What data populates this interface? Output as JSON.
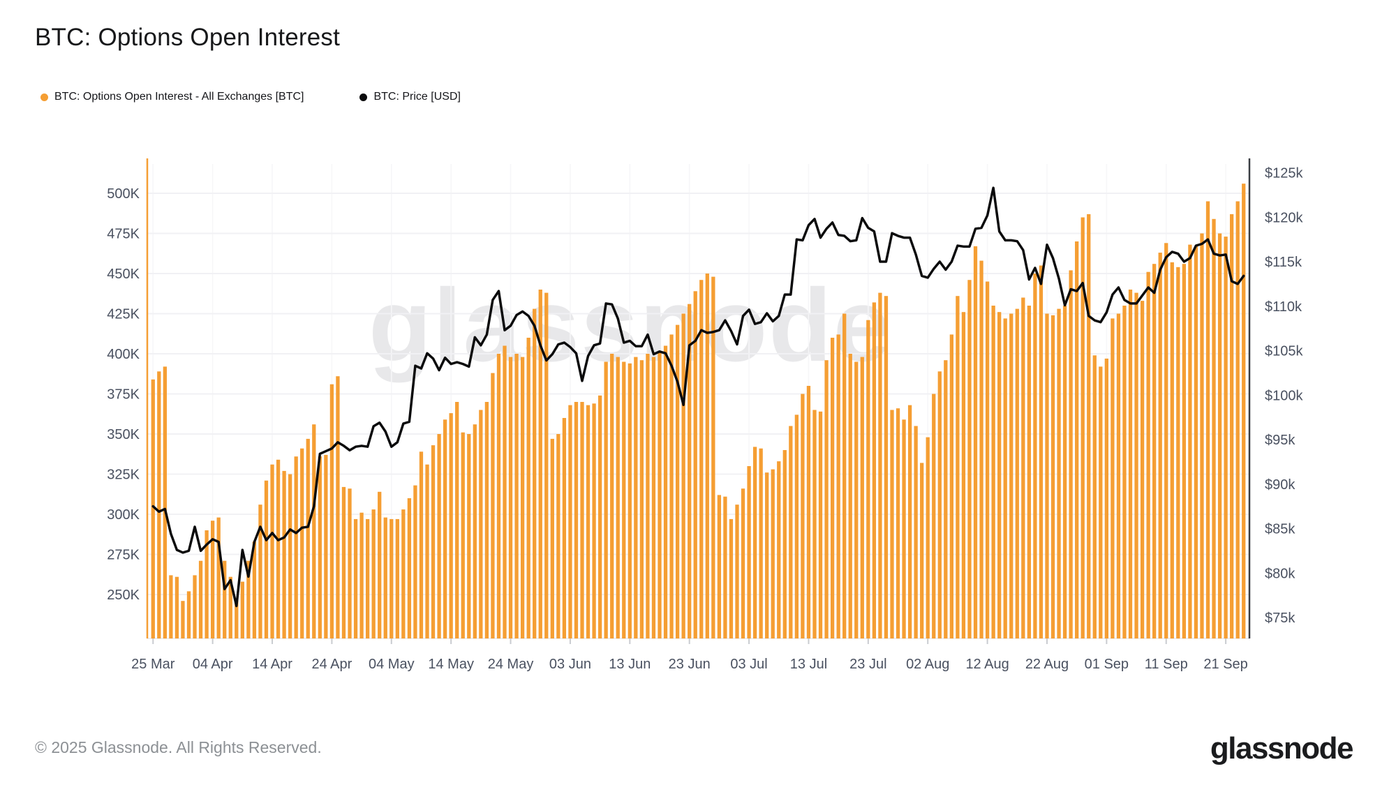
{
  "header": {
    "title": "BTC: Options Open Interest"
  },
  "legend": {
    "oi_label": "BTC: Options Open Interest - All Exchanges [BTC]",
    "price_label": "BTC: Price [USD]"
  },
  "watermark": {
    "text": "glassnode"
  },
  "footer": {
    "copyright": "© 2025 Glassnode. All Rights Reserved.",
    "logo_text": "glassnode"
  },
  "colors": {
    "oi_bar": "#F59E33",
    "price_line": "#0B0B0C",
    "grid_line": "#F1F1F4",
    "grid_line_vertical": "#F6F6F8",
    "axis_text": "#4A5160",
    "left_axis_line": "#F59E33",
    "right_axis_line": "#3A3D42",
    "tick_mark": "#C9CCD1",
    "plot_floor": "#E9E9EE"
  },
  "chart_data": {
    "type": "mixed",
    "title": "BTC: Options Open Interest",
    "x_tick_labels": [
      "25 Mar",
      "04 Apr",
      "14 Apr",
      "24 Apr",
      "04 May",
      "14 May",
      "24 May",
      "03 Jun",
      "13 Jun",
      "23 Jun",
      "03 Jul",
      "13 Jul",
      "23 Jul",
      "02 Aug",
      "12 Aug",
      "22 Aug",
      "01 Sep",
      "11 Sep",
      "21 Sep"
    ],
    "x_tick_indices": [
      0,
      10,
      20,
      30,
      40,
      50,
      60,
      70,
      80,
      90,
      100,
      110,
      120,
      130,
      140,
      150,
      160,
      170,
      180
    ],
    "y_left": {
      "min": 250,
      "max": 500,
      "tick_step": 25,
      "tick_labels": [
        "250K",
        "275K",
        "300K",
        "325K",
        "350K",
        "375K",
        "400K",
        "425K",
        "450K",
        "475K",
        "500K"
      ]
    },
    "y_right": {
      "min": 75,
      "max": 125,
      "tick_step": 5,
      "tick_labels": [
        "$75k",
        "$80k",
        "$85k",
        "$90k",
        "$95k",
        "$100k",
        "$105k",
        "$110k",
        "$115k",
        "$120k",
        "$125k"
      ]
    },
    "grid": "horizontal",
    "legend_position": "top-left",
    "series": [
      {
        "name": "BTC: Options Open Interest - All Exchanges [BTC]",
        "type": "bar",
        "axis": "left",
        "unit": "K BTC",
        "values": [
          384,
          389,
          392,
          262,
          261,
          246,
          252,
          262,
          271,
          290,
          296,
          298,
          271,
          261,
          247,
          258,
          271,
          283,
          306,
          321,
          331,
          334,
          327,
          325,
          336,
          341,
          347,
          356,
          336,
          337,
          381,
          386,
          317,
          316,
          297,
          301,
          297,
          303,
          314,
          298,
          297,
          297,
          303,
          310,
          318,
          339,
          331,
          343,
          350,
          359,
          363,
          370,
          351,
          350,
          356,
          365,
          370,
          388,
          400,
          405,
          398,
          400,
          398,
          410,
          428,
          440,
          438,
          347,
          350,
          360,
          368,
          370,
          370,
          368,
          369,
          374,
          395,
          400,
          398,
          395,
          394,
          398,
          396,
          400,
          398,
          401,
          405,
          412,
          418,
          425,
          431,
          439,
          446,
          450,
          448,
          312,
          311,
          297,
          306,
          316,
          330,
          342,
          341,
          326,
          328,
          333,
          340,
          355,
          362,
          375,
          380,
          365,
          364,
          396,
          410,
          412,
          425,
          400,
          395,
          398,
          421,
          432,
          438,
          436,
          365,
          366,
          359,
          368,
          355,
          332,
          348,
          375,
          389,
          396,
          412,
          436,
          426,
          446,
          467,
          458,
          445,
          430,
          426,
          422,
          425,
          428,
          435,
          430,
          450,
          455,
          425,
          424,
          428,
          430,
          452,
          470,
          485,
          487,
          399,
          392,
          397,
          422,
          425,
          430,
          440,
          438,
          433,
          451,
          456,
          463,
          469,
          457,
          454,
          456,
          468,
          467,
          475,
          495,
          484,
          475,
          473,
          487,
          495,
          506
        ]
      },
      {
        "name": "BTC: Price [USD]",
        "type": "line",
        "axis": "right",
        "unit": "$k",
        "values": [
          87.5,
          86.9,
          87.2,
          84.4,
          82.6,
          82.3,
          82.5,
          85.2,
          82.5,
          83.2,
          83.8,
          83.5,
          78.2,
          79.2,
          76.3,
          82.6,
          79.6,
          83.5,
          85.2,
          83.7,
          84.5,
          83.7,
          84.0,
          84.9,
          84.5,
          85.1,
          85.2,
          87.5,
          93.4,
          93.7,
          94.0,
          94.7,
          94.3,
          93.8,
          94.2,
          94.3,
          94.2,
          96.5,
          96.9,
          95.9,
          94.2,
          94.7,
          96.8,
          97.0,
          103.3,
          103.0,
          104.7,
          104.1,
          102.8,
          104.2,
          103.5,
          103.7,
          103.5,
          103.2,
          106.5,
          105.6,
          106.8,
          110.7,
          111.7,
          107.3,
          107.8,
          109.0,
          109.4,
          108.9,
          107.8,
          105.6,
          103.9,
          104.6,
          105.7,
          105.9,
          105.4,
          104.7,
          101.6,
          104.4,
          105.6,
          105.8,
          110.3,
          110.2,
          108.6,
          105.9,
          106.1,
          105.5,
          105.5,
          106.8,
          104.6,
          104.9,
          104.7,
          103.3,
          101.5,
          98.9,
          105.6,
          106.1,
          107.3,
          107.0,
          107.1,
          107.3,
          108.4,
          107.2,
          105.7,
          108.9,
          109.6,
          108.0,
          108.2,
          109.2,
          108.3,
          108.9,
          111.3,
          111.3,
          117.5,
          117.4,
          119.1,
          119.8,
          117.7,
          118.7,
          119.4,
          118.0,
          117.9,
          117.3,
          117.4,
          119.9,
          118.8,
          118.4,
          115.0,
          115.0,
          118.2,
          117.9,
          117.7,
          117.7,
          115.8,
          113.4,
          113.2,
          114.2,
          115.0,
          114.1,
          115.0,
          116.8,
          116.7,
          116.7,
          118.7,
          118.8,
          120.2,
          123.3,
          118.4,
          117.4,
          117.4,
          117.3,
          116.3,
          113.0,
          114.3,
          112.5,
          116.9,
          115.4,
          113.1,
          110.1,
          111.9,
          111.7,
          112.6,
          108.9,
          108.4,
          108.2,
          109.3,
          111.3,
          112.1,
          110.7,
          110.3,
          110.3,
          111.2,
          112.1,
          111.5,
          114.1,
          115.5,
          116.1,
          115.9,
          115.0,
          115.4,
          116.8,
          117.0,
          117.5,
          115.9,
          115.7,
          115.8,
          112.8,
          112.5,
          113.4
        ]
      }
    ]
  }
}
